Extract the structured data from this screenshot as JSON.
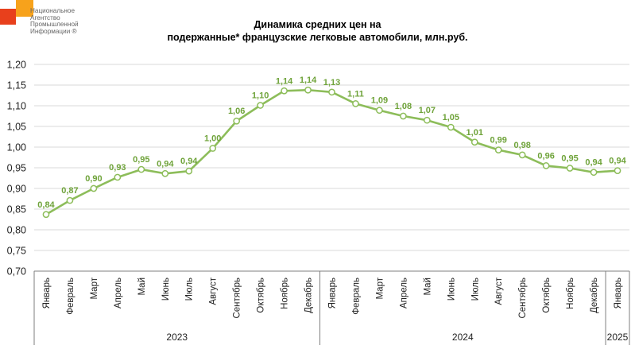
{
  "logo": {
    "tag": "НАПИ",
    "name_lines": [
      "Национальное",
      "Агентство",
      "Промышленной",
      "Информации ®"
    ],
    "colors": {
      "red": "#e8401c",
      "orange": "#f7a21b"
    }
  },
  "chart_data": {
    "type": "line",
    "title_lines": [
      "Динамика средних цен на",
      "подержанные* французские легковые автомобили, млн.руб."
    ],
    "categories": [
      "Январь",
      "Февраль",
      "Март",
      "Апрель",
      "Май",
      "Июнь",
      "Июль",
      "Август",
      "Сентябрь",
      "Октябрь",
      "Ноябрь",
      "Декабрь",
      "Январь",
      "Февраль",
      "Март",
      "Апрель",
      "Май",
      "Июнь",
      "Июль",
      "Август",
      "Сентябрь",
      "Октябрь",
      "Ноябрь",
      "Декабрь",
      "Январь"
    ],
    "year_groups": [
      {
        "label": "2023",
        "count": 12
      },
      {
        "label": "2024",
        "count": 12
      },
      {
        "label": "2025",
        "count": 1
      }
    ],
    "series": [
      {
        "values": [
          0.837,
          0.871,
          0.9,
          0.927,
          0.946,
          0.936,
          0.942,
          0.997,
          1.063,
          1.101,
          1.136,
          1.138,
          1.133,
          1.105,
          1.089,
          1.075,
          1.065,
          1.048,
          1.012,
          0.993,
          0.981,
          0.955,
          0.949,
          0.939,
          0.943
        ],
        "labels": [
          "0,84",
          "0,87",
          "0,90",
          "0,93",
          "0,95",
          "0,94",
          "0,94",
          "1,00",
          "1,06",
          "1,10",
          "1,14",
          "1,14",
          "1,13",
          "1,11",
          "1,09",
          "1,08",
          "1,07",
          "1,05",
          "1,01",
          "0,99",
          "0,98",
          "0,96",
          "0,95",
          "0,94",
          "0,94"
        ],
        "color": "#8dbd5a"
      }
    ],
    "ylim": [
      0.7,
      1.2
    ],
    "yticks": [
      "0,70",
      "0,75",
      "0,80",
      "0,85",
      "0,90",
      "0,95",
      "1,00",
      "1,05",
      "1,10",
      "1,15",
      "1,20"
    ],
    "grid": true,
    "colors": {
      "line": "#8dbd5a",
      "label": "#6fa33a",
      "grid": "#d9d9d9",
      "axis": "#7f7f7f"
    }
  }
}
